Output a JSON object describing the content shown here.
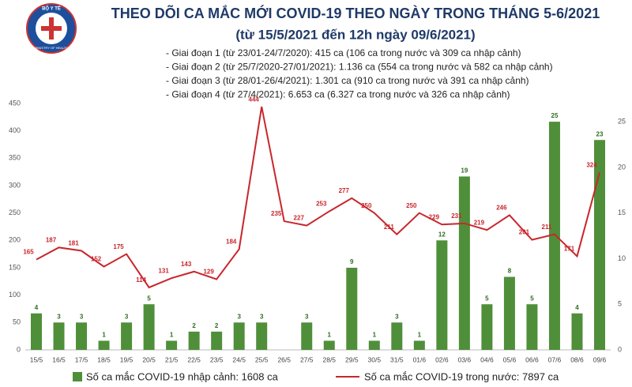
{
  "logo": {
    "top": "BỘ Y TẾ",
    "bottom": "MINISTRY OF HEALTH"
  },
  "chart_data": {
    "type": "combo",
    "title": "THEO DÕI CA MẮC MỚI COVID-19 THEO NGÀY TRONG THÁNG 5-6/2021",
    "subtitle": "(từ 15/5/2021 đến 12h ngày 09/6/2021)",
    "annotations": [
      "- Giai đoạn 1 (từ 23/01-24/7/2020): 415 ca (106 ca trong nước và 309 ca nhập cảnh)",
      "- Giai đoạn 2 (từ 25/7/2020-27/01/2021): 1.136 ca (554 ca trong nước và 582 ca nhập cảnh)",
      "- Giai đoạn 3 (từ 28/01-26/4/2021): 1.301 ca (910 ca trong nước và 391 ca nhập cảnh)",
      "- Giai đoạn 4 (từ 27/4/2021): 6.653 ca (6.327 ca trong nước và 326 ca nhập cảnh)"
    ],
    "categories": [
      "15/5",
      "16/5",
      "17/5",
      "18/5",
      "19/5",
      "20/5",
      "21/5",
      "22/5",
      "23/5",
      "24/5",
      "25/5",
      "26/5",
      "27/5",
      "28/5",
      "29/5",
      "30/5",
      "31/5",
      "01/6",
      "02/6",
      "03/6",
      "04/6",
      "05/6",
      "06/6",
      "07/6",
      "08/6",
      "09/6"
    ],
    "series": [
      {
        "name": "Số ca mắc COVID-19 nhập cảnh: 1608 ca",
        "type": "bar",
        "axis": "y2",
        "color": "#4f8f3a",
        "values": [
          4,
          3,
          3,
          1,
          3,
          5,
          1,
          2,
          2,
          3,
          3,
          null,
          3,
          1,
          9,
          1,
          3,
          1,
          12,
          19,
          5,
          8,
          5,
          25,
          4,
          23
        ]
      },
      {
        "name": "Số ca mắc COVID-19 trong nước: 7897 ca",
        "type": "line",
        "axis": "y",
        "color": "#c8262c",
        "values": [
          165,
          187,
          181,
          152,
          175,
          114,
          131,
          143,
          129,
          184,
          444,
          235,
          227,
          253,
          277,
          250,
          211,
          250,
          229,
          231,
          219,
          246,
          201,
          211,
          171,
          324
        ]
      }
    ],
    "ylim": [
      0,
      450
    ],
    "yticks": [
      0,
      50,
      100,
      150,
      200,
      250,
      300,
      350,
      400,
      450
    ],
    "y2lim": [
      0,
      27
    ],
    "y2ticks": [
      0,
      5,
      10,
      15,
      20,
      25
    ]
  }
}
